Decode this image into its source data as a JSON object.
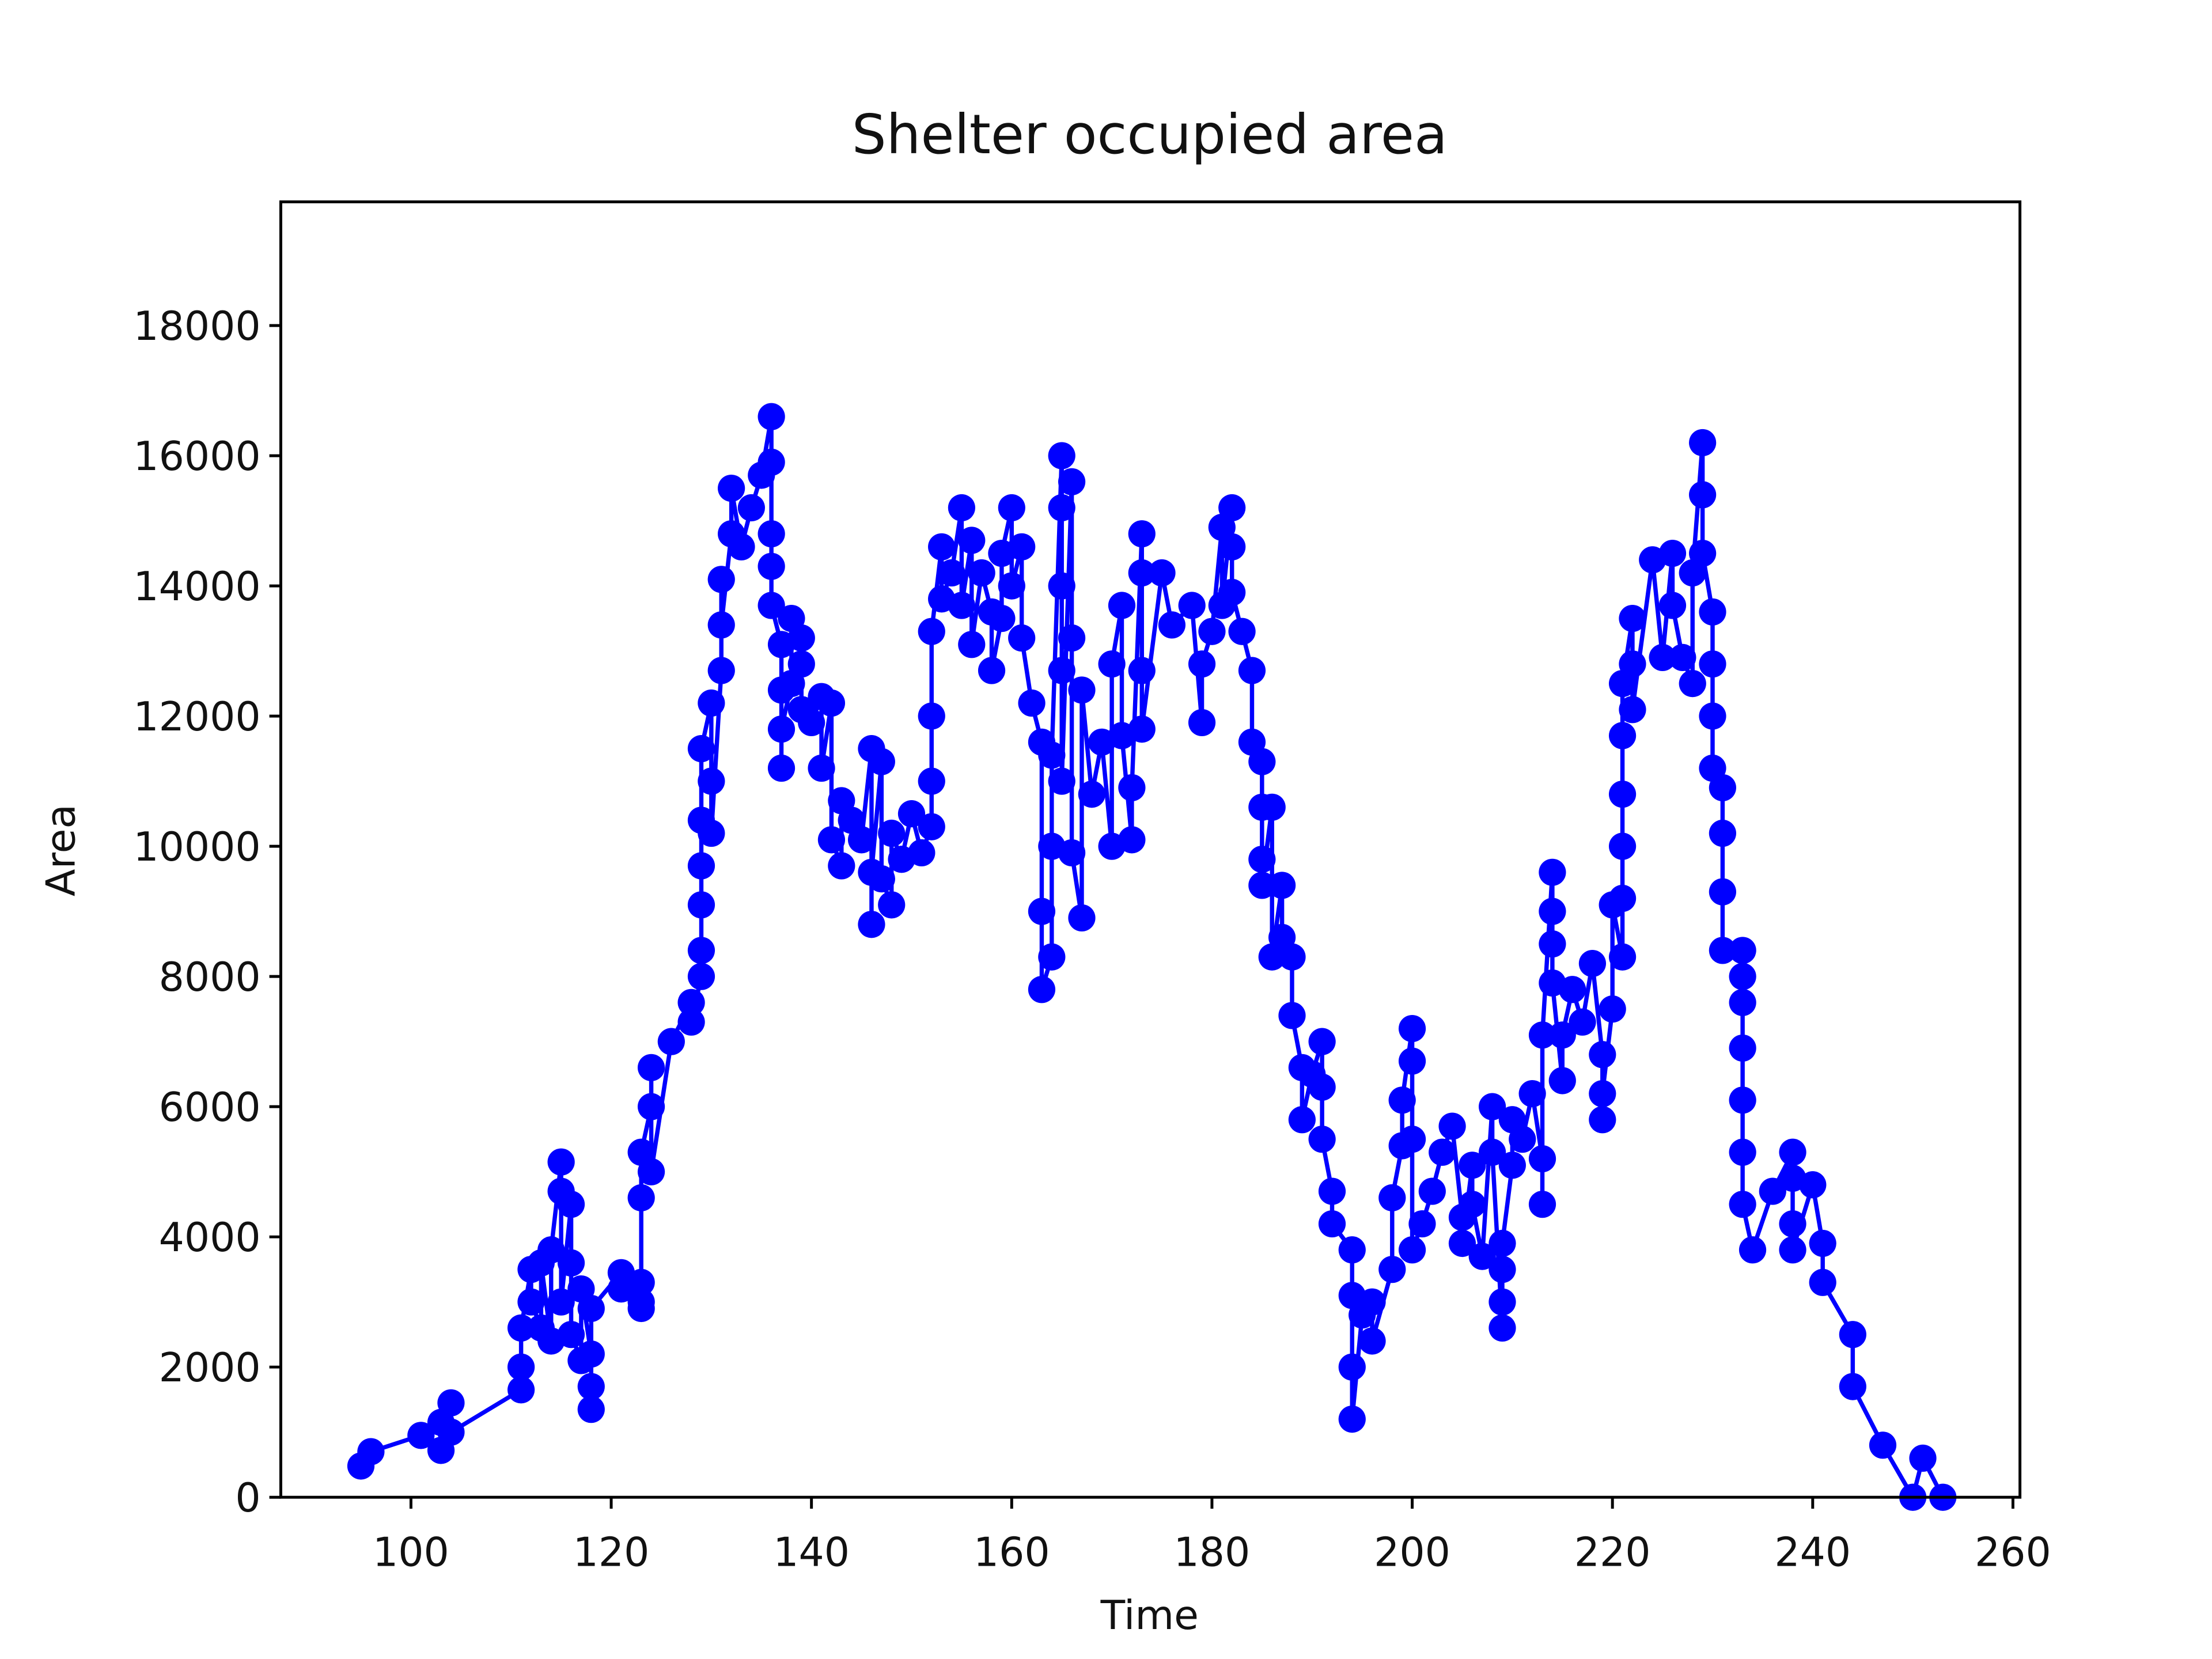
{
  "chart_data": {
    "type": "line",
    "title": "Shelter occupied area",
    "xlabel": "Time",
    "ylabel": "Area",
    "color": "#0000ff",
    "marker": true,
    "x": [
      95,
      96,
      101,
      103,
      103,
      104,
      104,
      111,
      111,
      111,
      112,
      112,
      113,
      113,
      114,
      114,
      115,
      115,
      115,
      116,
      116,
      116,
      117,
      117,
      118,
      118,
      118,
      118,
      121,
      121,
      123,
      123,
      123,
      123,
      123,
      124,
      124,
      124,
      126,
      128,
      128,
      129,
      129,
      129,
      129,
      129,
      129,
      130,
      130,
      130,
      131,
      131,
      131,
      132,
      132,
      133,
      134,
      135,
      136,
      136,
      136,
      136,
      136,
      137,
      137,
      137,
      137,
      138,
      138,
      139,
      139,
      139,
      140,
      141,
      141,
      142,
      142,
      143,
      143,
      144,
      145,
      146,
      146,
      146,
      147,
      147,
      148,
      148,
      149,
      150,
      151,
      152,
      152,
      152,
      152,
      153,
      153,
      154,
      155,
      155,
      156,
      156,
      157,
      158,
      158,
      159,
      159,
      160,
      160,
      161,
      161,
      162,
      163,
      163,
      163,
      164,
      164,
      164,
      165,
      165,
      165,
      165,
      165,
      166,
      166,
      166,
      167,
      167,
      168,
      169,
      170,
      170,
      171,
      171,
      172,
      172,
      173,
      173,
      173,
      173,
      175,
      176,
      178,
      179,
      179,
      180,
      181,
      181,
      182,
      182,
      182,
      183,
      184,
      184,
      185,
      185,
      185,
      185,
      186,
      186,
      187,
      187,
      188,
      188,
      189,
      189,
      190,
      191,
      191,
      191,
      192,
      192,
      194,
      194,
      194,
      194,
      195,
      196,
      196,
      198,
      198,
      199,
      199,
      200,
      200,
      200,
      200,
      201,
      202,
      203,
      204,
      205,
      205,
      206,
      206,
      207,
      208,
      208,
      209,
      209,
      209,
      209,
      210,
      210,
      211,
      212,
      213,
      213,
      213,
      214,
      214,
      214,
      214,
      215,
      215,
      216,
      217,
      218,
      219,
      219,
      219,
      220,
      220,
      221,
      221,
      221,
      221,
      221,
      221,
      222,
      222,
      222,
      224,
      225,
      226,
      226,
      227,
      228,
      228,
      229,
      229,
      229,
      230,
      230,
      230,
      230,
      231,
      231,
      231,
      231,
      233,
      233,
      233,
      233,
      233,
      233,
      233,
      234,
      236,
      238,
      238,
      238,
      238,
      240,
      241,
      241,
      244,
      244,
      247,
      250,
      251,
      253
    ],
    "values": [
      480,
      700,
      950,
      1150,
      720,
      1450,
      1000,
      1650,
      2000,
      2600,
      3500,
      3000,
      2600,
      3600,
      2400,
      3800,
      5150,
      4700,
      3000,
      4500,
      3600,
      2500,
      2100,
      3200,
      2200,
      1700,
      1350,
      2900,
      3450,
      3200,
      3000,
      2900,
      3300,
      4600,
      5300,
      6000,
      6600,
      5000,
      7000,
      7600,
      7300,
      8000,
      8400,
      9100,
      9700,
      10400,
      11500,
      12200,
      11000,
      10200,
      12700,
      14100,
      13400,
      14800,
      15500,
      14600,
      15200,
      15700,
      16600,
      15900,
      14800,
      14300,
      13700,
      13100,
      12400,
      11200,
      11800,
      12500,
      13500,
      13200,
      12800,
      12100,
      11900,
      12300,
      11200,
      12200,
      10100,
      9700,
      10700,
      10400,
      10100,
      11500,
      8800,
      9600,
      11300,
      9500,
      9100,
      10200,
      9800,
      10500,
      9900,
      10300,
      11000,
      12000,
      13300,
      14600,
      13800,
      14200,
      15200,
      13700,
      14700,
      13100,
      14200,
      13600,
      12700,
      13500,
      14500,
      15200,
      14000,
      14600,
      13200,
      12200,
      11600,
      9000,
      7800,
      8300,
      10000,
      11400,
      16000,
      15200,
      14000,
      12700,
      11000,
      15600,
      13200,
      9900,
      8900,
      12400,
      10800,
      11600,
      10000,
      12800,
      13700,
      11700,
      10100,
      10900,
      14800,
      14200,
      12700,
      11800,
      14200,
      13400,
      13700,
      11900,
      12800,
      13300,
      14900,
      13700,
      15200,
      14600,
      13900,
      13300,
      12700,
      11600,
      11300,
      10600,
      9800,
      9400,
      10600,
      8300,
      9400,
      8600,
      8300,
      7400,
      6600,
      5800,
      6500,
      7000,
      6300,
      5500,
      4700,
      4200,
      3800,
      3100,
      2000,
      1200,
      2800,
      3000,
      2400,
      3500,
      4600,
      5400,
      6100,
      7200,
      6700,
      5500,
      3800,
      4200,
      4700,
      5300,
      5700,
      4300,
      3900,
      5100,
      4500,
      3700,
      6000,
      5300,
      2600,
      3000,
      3500,
      3900,
      5100,
      5800,
      5500,
      6200,
      5200,
      4500,
      7100,
      9600,
      9000,
      8500,
      7900,
      6400,
      7100,
      7800,
      7300,
      8200,
      6800,
      5800,
      6200,
      7500,
      9100,
      8300,
      9200,
      10000,
      10800,
      11700,
      12500,
      13500,
      12800,
      12100,
      14400,
      12900,
      14500,
      13700,
      12900,
      12500,
      14200,
      16200,
      15400,
      14500,
      13600,
      12800,
      12000,
      11200,
      10900,
      10200,
      9300,
      8400,
      8400,
      8000,
      7600,
      6900,
      6100,
      5300,
      4500,
      3800,
      4700,
      5300,
      4900,
      4200,
      3800,
      4800,
      3900,
      3300,
      2500,
      1700,
      800,
      0,
      600,
      0
    ],
    "xlim": [
      87,
      260.7
    ],
    "xticks": [
      100,
      120,
      140,
      160,
      180,
      200,
      220,
      240,
      260
    ],
    "ylim": [
      0,
      19900
    ],
    "yticks": [
      0,
      2000,
      4000,
      6000,
      8000,
      10000,
      12000,
      14000,
      16000,
      18000
    ]
  }
}
